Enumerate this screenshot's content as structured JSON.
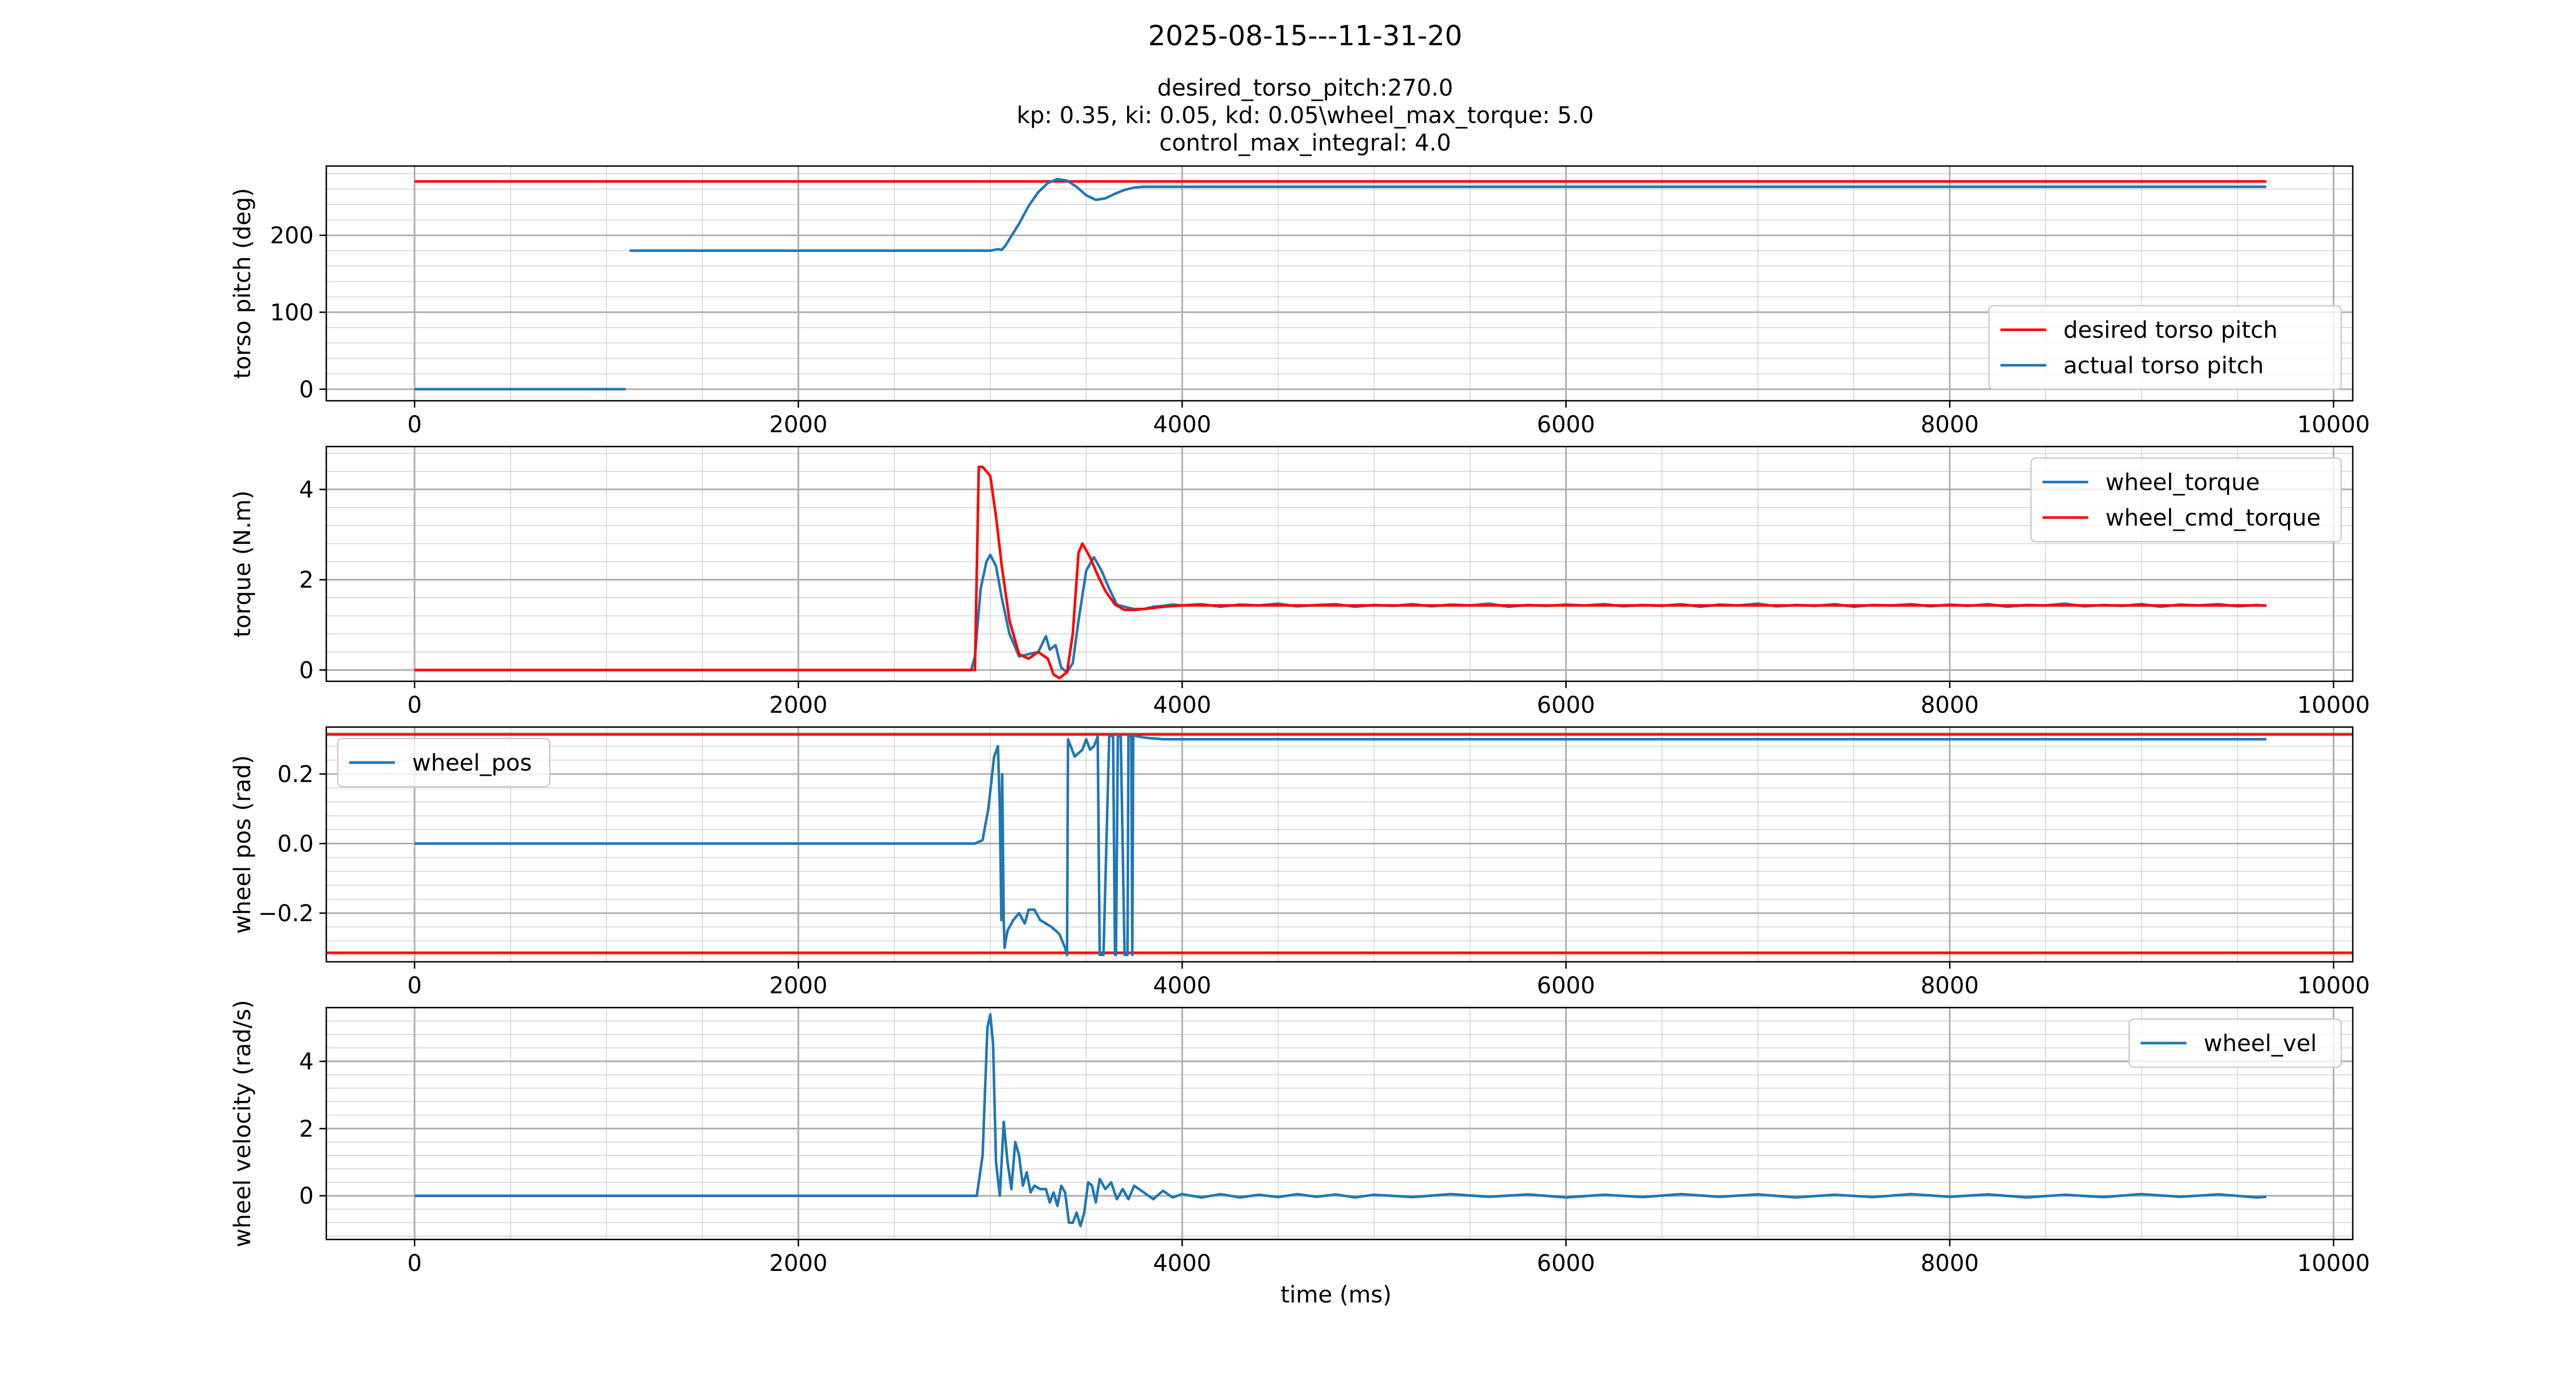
{
  "figure": {
    "suptitle": "2025-08-15---11-31-20",
    "title_lines": [
      "desired_torso_pitch:270.0",
      "kp: 0.35, ki: 0.05, kd: 0.05\\wheel_max_torque: 5.0",
      "control_max_integral: 4.0"
    ],
    "xlabel": "time (ms)"
  },
  "colors": {
    "blue": "#1f77b4",
    "red": "#ff0000",
    "grid": "#b0b0b0",
    "axis": "#000000"
  },
  "chart_data": [
    {
      "type": "line",
      "ylabel": "torso pitch (deg)",
      "xlim": [
        -460,
        10100
      ],
      "ylim": [
        -15,
        290
      ],
      "xticks": [
        0,
        2000,
        4000,
        6000,
        8000,
        10000
      ],
      "yticks": [
        0,
        100,
        200
      ],
      "grid": true,
      "legend_loc": "lower-right",
      "series": [
        {
          "name": "desired torso pitch",
          "color": "#ff0000",
          "x": [
            0,
            9650
          ],
          "y": [
            270,
            270
          ]
        },
        {
          "name": "actual torso pitch",
          "color": "#1f77b4",
          "segments": [
            {
              "x": [
                0,
                1100
              ],
              "y": [
                0,
                0
              ]
            },
            {
              "x": [
                1120,
                3000,
                3040,
                3060,
                3080,
                3100,
                3150,
                3200,
                3250,
                3300,
                3350,
                3400,
                3450,
                3500,
                3550,
                3600,
                3650,
                3700,
                3750,
                3800,
                3900,
                4000,
                5000,
                6000,
                7000,
                8000,
                9000,
                9650
              ],
              "y": [
                180,
                180,
                182,
                181,
                187,
                195,
                215,
                238,
                256,
                268,
                273,
                271,
                263,
                252,
                246,
                248,
                254,
                259,
                262,
                263,
                263,
                263,
                263,
                263,
                263,
                263,
                263,
                263
              ]
            }
          ]
        }
      ]
    },
    {
      "type": "line",
      "ylabel": "torque (N.m)",
      "xlim": [
        -460,
        10100
      ],
      "ylim": [
        -0.25,
        4.95
      ],
      "xticks": [
        0,
        2000,
        4000,
        6000,
        8000,
        10000
      ],
      "yticks": [
        0,
        2,
        4
      ],
      "grid": true,
      "legend_loc": "upper-right",
      "series": [
        {
          "name": "wheel_torque",
          "color": "#1f77b4",
          "x": [
            0,
            2900,
            2920,
            2950,
            2980,
            3000,
            3030,
            3060,
            3100,
            3150,
            3200,
            3250,
            3290,
            3310,
            3340,
            3370,
            3400,
            3430,
            3460,
            3500,
            3540,
            3580,
            3620,
            3660,
            3700,
            3750,
            3800,
            3850,
            3900,
            3950,
            4000,
            4100,
            4200,
            4300,
            4400,
            4500,
            4600,
            4700,
            4800,
            4900,
            5000,
            5100,
            5200,
            5300,
            5400,
            5500,
            5600,
            5700,
            5800,
            5900,
            6000,
            6100,
            6200,
            6300,
            6400,
            6500,
            6600,
            6700,
            6800,
            6900,
            7000,
            7100,
            7200,
            7300,
            7400,
            7500,
            7600,
            7700,
            7800,
            7900,
            8000,
            8100,
            8200,
            8300,
            8400,
            8500,
            8600,
            8700,
            8800,
            8900,
            9000,
            9100,
            9200,
            9300,
            9400,
            9500,
            9600,
            9650
          ],
          "y": [
            0,
            0,
            0.3,
            1.8,
            2.4,
            2.55,
            2.3,
            1.6,
            0.8,
            0.3,
            0.35,
            0.4,
            0.75,
            0.45,
            0.55,
            0.05,
            -0.05,
            0.15,
            1.1,
            2.2,
            2.5,
            2.2,
            1.8,
            1.45,
            1.4,
            1.35,
            1.35,
            1.4,
            1.42,
            1.45,
            1.43,
            1.46,
            1.4,
            1.45,
            1.43,
            1.47,
            1.41,
            1.44,
            1.46,
            1.4,
            1.44,
            1.42,
            1.46,
            1.41,
            1.45,
            1.43,
            1.47,
            1.4,
            1.44,
            1.42,
            1.45,
            1.43,
            1.46,
            1.41,
            1.44,
            1.42,
            1.46,
            1.4,
            1.45,
            1.43,
            1.47,
            1.41,
            1.44,
            1.42,
            1.46,
            1.4,
            1.44,
            1.43,
            1.46,
            1.41,
            1.45,
            1.42,
            1.46,
            1.4,
            1.44,
            1.43,
            1.47,
            1.41,
            1.44,
            1.42,
            1.46,
            1.4,
            1.45,
            1.43,
            1.46,
            1.41,
            1.44,
            1.42
          ]
        },
        {
          "name": "wheel_cmd_torque",
          "color": "#ff0000",
          "x": [
            0,
            2920,
            2940,
            2960,
            3000,
            3030,
            3060,
            3100,
            3150,
            3200,
            3250,
            3300,
            3330,
            3360,
            3400,
            3430,
            3460,
            3480,
            3520,
            3560,
            3600,
            3650,
            3700,
            3750,
            3800,
            3900,
            4000,
            5000,
            6000,
            7000,
            8000,
            9000,
            9650
          ],
          "y": [
            0,
            0,
            4.5,
            4.5,
            4.3,
            3.4,
            2.3,
            1.1,
            0.35,
            0.25,
            0.4,
            0.25,
            -0.1,
            -0.18,
            -0.05,
            0.8,
            2.6,
            2.8,
            2.5,
            2.1,
            1.75,
            1.45,
            1.33,
            1.33,
            1.35,
            1.4,
            1.43,
            1.43,
            1.43,
            1.43,
            1.43,
            1.43,
            1.43
          ]
        }
      ]
    },
    {
      "type": "line",
      "ylabel": "wheel pos (rad)",
      "xlim": [
        -460,
        10100
      ],
      "ylim": [
        -0.34,
        0.335
      ],
      "xticks": [
        0,
        2000,
        4000,
        6000,
        8000,
        10000
      ],
      "yticks": [
        -0.2,
        0.0,
        0.2
      ],
      "ytick_labels": [
        "−0.2",
        "0.0",
        "0.2"
      ],
      "grid": true,
      "legend_loc": "upper-left",
      "hlines": [
        {
          "y": 0.314,
          "color": "#ff0000"
        },
        {
          "y": -0.314,
          "color": "#ff0000"
        }
      ],
      "series": [
        {
          "name": "wheel_pos",
          "color": "#1f77b4",
          "x": [
            0,
            2920,
            2960,
            2990,
            3020,
            3040,
            3050,
            3058,
            3062,
            3070,
            3075,
            3080,
            3090,
            3120,
            3150,
            3180,
            3200,
            3230,
            3260,
            3290,
            3320,
            3360,
            3390,
            3400,
            3405,
            3440,
            3460,
            3480,
            3500,
            3520,
            3540,
            3555,
            3560,
            3570,
            3590,
            3620,
            3640,
            3650,
            3655,
            3665,
            3680,
            3700,
            3715,
            3720,
            3735,
            3740,
            3745,
            3750,
            3800,
            3900,
            4000,
            5000,
            6000,
            7000,
            8000,
            9000,
            9650
          ],
          "y": [
            0,
            0,
            0.01,
            0.1,
            0.25,
            0.28,
            0.1,
            -0.22,
            0.2,
            -0.22,
            -0.3,
            -0.28,
            -0.25,
            -0.22,
            -0.2,
            -0.23,
            -0.19,
            -0.19,
            -0.22,
            -0.23,
            -0.24,
            -0.26,
            -0.3,
            -0.32,
            0.3,
            0.25,
            0.26,
            0.27,
            0.3,
            0.27,
            0.28,
            0.3,
            0.31,
            -0.32,
            -0.32,
            0.31,
            0.31,
            -0.32,
            -0.32,
            0.31,
            0.31,
            -0.32,
            -0.32,
            0.31,
            0.31,
            -0.32,
            0.31,
            0.31,
            0.305,
            0.3,
            0.3,
            0.3,
            0.3,
            0.3,
            0.3,
            0.3,
            0.3
          ]
        }
      ]
    },
    {
      "type": "line",
      "ylabel": "wheel velocity (rad/s)",
      "xlim": [
        -460,
        10100
      ],
      "ylim": [
        -1.3,
        5.6
      ],
      "xticks": [
        0,
        2000,
        4000,
        6000,
        8000,
        10000
      ],
      "yticks": [
        0,
        2,
        4
      ],
      "grid": true,
      "legend_loc": "upper-right",
      "series": [
        {
          "name": "wheel_vel",
          "color": "#1f77b4",
          "x": [
            0,
            2930,
            2960,
            2985,
            3000,
            3015,
            3030,
            3050,
            3070,
            3090,
            3110,
            3130,
            3150,
            3170,
            3190,
            3210,
            3230,
            3260,
            3290,
            3310,
            3330,
            3350,
            3370,
            3390,
            3410,
            3430,
            3450,
            3470,
            3490,
            3510,
            3530,
            3550,
            3570,
            3600,
            3630,
            3660,
            3690,
            3720,
            3750,
            3800,
            3850,
            3900,
            3950,
            4000,
            4100,
            4200,
            4300,
            4400,
            4500,
            4600,
            4700,
            4800,
            4900,
            5000,
            5200,
            5400,
            5600,
            5800,
            6000,
            6200,
            6400,
            6600,
            6800,
            7000,
            7200,
            7400,
            7600,
            7800,
            8000,
            8200,
            8400,
            8600,
            8800,
            9000,
            9200,
            9400,
            9600,
            9650
          ],
          "y": [
            0,
            0,
            1.2,
            5.0,
            5.4,
            4.5,
            1.0,
            0.0,
            2.2,
            1.0,
            0.2,
            1.6,
            1.2,
            0.3,
            0.7,
            0.1,
            0.3,
            0.2,
            0.2,
            -0.2,
            0.1,
            -0.3,
            0.3,
            0.1,
            -0.8,
            -0.8,
            -0.5,
            -0.9,
            -0.5,
            0.4,
            0.3,
            -0.2,
            0.5,
            0.2,
            0.4,
            -0.1,
            0.2,
            -0.1,
            0.3,
            0.1,
            -0.1,
            0.15,
            -0.05,
            0.05,
            -0.05,
            0.05,
            -0.05,
            0.03,
            -0.04,
            0.05,
            -0.03,
            0.04,
            -0.05,
            0.03,
            -0.04,
            0.05,
            -0.03,
            0.04,
            -0.05,
            0.03,
            -0.04,
            0.05,
            -0.03,
            0.04,
            -0.05,
            0.03,
            -0.04,
            0.05,
            -0.03,
            0.04,
            -0.05,
            0.03,
            -0.04,
            0.05,
            -0.03,
            0.04,
            -0.05,
            -0.03
          ]
        }
      ]
    }
  ]
}
